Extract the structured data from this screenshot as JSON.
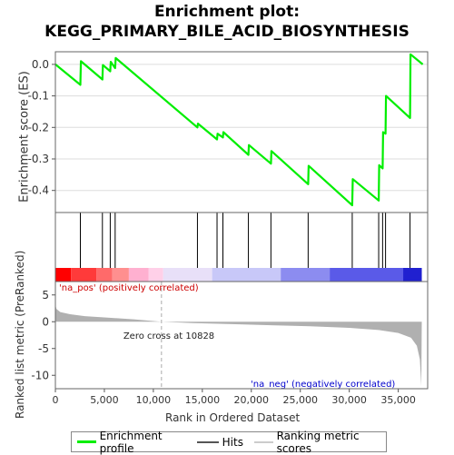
{
  "title_line1": "Enrichment plot:",
  "title_line2": "KEGG_PRIMARY_BILE_ACID_BIOSYNTHESIS",
  "legend": {
    "enrichment_label": "Enrichment profile",
    "hits_label": "Hits",
    "ranking_label": "Ranking metric scores"
  },
  "colors": {
    "enrichment": "#00ee00",
    "hits": "#000000",
    "ranking": "#b0b0b0",
    "pos_text": "#cc0000",
    "neg_text": "#0000cc"
  },
  "chart_data": [
    {
      "type": "line",
      "title": "",
      "ylabel": "Enrichment score (ES)",
      "ylim": [
        -0.47,
        0.04
      ],
      "yticks": [
        0.0,
        -0.1,
        -0.2,
        -0.3,
        -0.4
      ],
      "ytick_labels": [
        "0.0",
        "-0.1",
        "-0.2",
        "-0.3",
        "-0.4"
      ],
      "xlim": [
        0,
        38000
      ],
      "grid": true,
      "series": [
        {
          "name": "Enrichment profile",
          "x": [
            0,
            2550,
            2600,
            4800,
            4850,
            5600,
            5650,
            6100,
            6150,
            14500,
            14550,
            16500,
            16550,
            17100,
            17150,
            19700,
            19750,
            22000,
            22050,
            25800,
            25850,
            30300,
            30350,
            33000,
            33050,
            33400,
            33450,
            33700,
            33750,
            36200,
            36250,
            37500
          ],
          "y": [
            0.0,
            -0.065,
            0.01,
            -0.048,
            -0.002,
            -0.022,
            0.008,
            -0.012,
            0.02,
            -0.2,
            -0.188,
            -0.238,
            -0.22,
            -0.232,
            -0.215,
            -0.287,
            -0.256,
            -0.315,
            -0.275,
            -0.38,
            -0.322,
            -0.447,
            -0.364,
            -0.432,
            -0.32,
            -0.33,
            -0.215,
            -0.22,
            -0.1,
            -0.17,
            0.032,
            0.0
          ]
        }
      ]
    },
    {
      "type": "hits",
      "hit_positions": [
        2550,
        4800,
        5600,
        6100,
        14500,
        16500,
        17100,
        19700,
        22000,
        25800,
        30300,
        33000,
        33400,
        33700,
        36200
      ]
    },
    {
      "type": "area",
      "ylabel": "Ranked list metric (PreRanked)",
      "xlabel": "Rank in Ordered Dataset",
      "ylim": [
        -12.5,
        7.5
      ],
      "yticks": [
        5,
        0,
        -5,
        -10
      ],
      "ytick_labels": [
        "5",
        "0",
        "-5",
        "-10"
      ],
      "xlim": [
        0,
        38000
      ],
      "xticks": [
        0,
        5000,
        10000,
        15000,
        20000,
        25000,
        30000,
        35000
      ],
      "xtick_labels": [
        "0",
        "5,000",
        "10,000",
        "15,000",
        "20,000",
        "25,000",
        "30,000",
        "35,000"
      ],
      "zero_cross": 10828,
      "annotations": {
        "zero_cross": "Zero cross at 10828",
        "pos": "'na_pos' (positively correlated)",
        "neg": "'na_neg' (negatively correlated)"
      },
      "series": [
        {
          "name": "Ranking metric scores",
          "x": [
            0,
            100,
            500,
            1500,
            3000,
            5000,
            8000,
            10828,
            14000,
            18000,
            22000,
            26000,
            30000,
            33000,
            35000,
            36300,
            36900,
            37200,
            37350,
            37400
          ],
          "y": [
            3.2,
            2.4,
            1.8,
            1.4,
            1.05,
            0.8,
            0.45,
            0.0,
            -0.25,
            -0.45,
            -0.65,
            -0.85,
            -1.15,
            -1.55,
            -2.1,
            -3.0,
            -4.5,
            -7.0,
            -12.0,
            0.0
          ]
        }
      ]
    }
  ]
}
